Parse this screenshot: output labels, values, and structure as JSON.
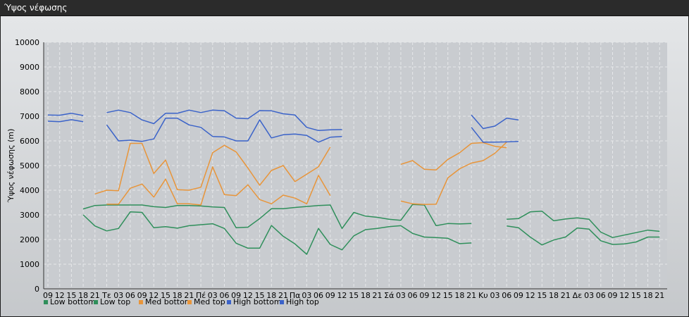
{
  "window": {
    "title": "Ύψος νέφωσης"
  },
  "chart_data": {
    "type": "line",
    "title": "",
    "ylabel": "Ύψος νέφωσης (m)",
    "xlabel": "",
    "ylim": [
      0,
      10000
    ],
    "yticks": [
      0,
      1000,
      2000,
      3000,
      4000,
      5000,
      6000,
      7000,
      8000,
      9000,
      10000
    ],
    "grid": true,
    "legend": "bottom-left",
    "x_tick_labels": [
      "09",
      "12",
      "15",
      "18",
      "21",
      "Τε",
      "03",
      "06",
      "09",
      "12",
      "15",
      "18",
      "21",
      "Πέ",
      "03",
      "06",
      "09",
      "12",
      "15",
      "18",
      "21",
      "Πα",
      "03",
      "06",
      "09",
      "12",
      "15",
      "18",
      "21",
      "Σά",
      "03",
      "06",
      "09",
      "12",
      "15",
      "18",
      "21",
      "Κυ",
      "03",
      "06",
      "09",
      "12",
      "15",
      "18",
      "21",
      "Δε",
      "03",
      "06",
      "09",
      "12",
      "15",
      "18",
      "21"
    ],
    "series": [
      {
        "name": "Low bottom",
        "color": "#2f8f5b",
        "values": [
          null,
          null,
          null,
          3000,
          2550,
          2350,
          2450,
          3120,
          3100,
          2480,
          2520,
          2460,
          2560,
          2600,
          2640,
          2450,
          1850,
          1650,
          1650,
          2570,
          2130,
          1820,
          1400,
          2450,
          1800,
          1580,
          2150,
          2400,
          2450,
          2520,
          2560,
          2250,
          2100,
          2080,
          2050,
          1830,
          1860,
          null,
          null,
          2550,
          2480,
          2100,
          1780,
          1980,
          2100,
          2470,
          2420,
          1950,
          1800,
          1820,
          1900,
          2100,
          2100
        ]
      },
      {
        "name": "Low top",
        "color": "#2f8f5b",
        "values": [
          null,
          null,
          null,
          3240,
          3380,
          3400,
          3400,
          3400,
          3400,
          3330,
          3300,
          3380,
          3380,
          3360,
          3320,
          3300,
          2480,
          2500,
          2850,
          3250,
          3250,
          3300,
          3340,
          3380,
          3400,
          2450,
          3100,
          2950,
          2900,
          2820,
          2780,
          3420,
          3400,
          2560,
          2650,
          2630,
          2650,
          null,
          null,
          2820,
          2850,
          3120,
          3150,
          2760,
          2830,
          2880,
          2820,
          2300,
          2080,
          2180,
          2280,
          2380,
          2330
        ]
      },
      {
        "name": "Med bottom",
        "color": "#e8953a",
        "values": [
          null,
          null,
          null,
          null,
          null,
          3430,
          3430,
          4080,
          4250,
          3720,
          4450,
          3450,
          3450,
          3400,
          4950,
          3820,
          3780,
          4220,
          3620,
          3450,
          3800,
          3680,
          3450,
          4600,
          3780,
          null,
          null,
          null,
          null,
          null,
          3560,
          3450,
          3420,
          3430,
          4500,
          4870,
          5100,
          5200,
          5500,
          5950,
          null,
          null,
          null,
          null,
          null,
          null,
          null,
          null,
          null,
          null,
          null,
          null,
          null
        ]
      },
      {
        "name": "Med top",
        "color": "#e8953a",
        "values": [
          null,
          null,
          null,
          null,
          3850,
          4000,
          3980,
          5900,
          5900,
          4680,
          5220,
          4020,
          4000,
          4120,
          5520,
          5820,
          5550,
          4900,
          4200,
          4800,
          5000,
          4350,
          4650,
          4950,
          5750,
          null,
          null,
          null,
          null,
          null,
          5050,
          5200,
          4850,
          4820,
          5250,
          5520,
          5900,
          5930,
          5780,
          5720,
          null,
          null,
          null,
          null,
          null,
          null,
          null,
          null,
          null,
          null,
          null,
          null,
          null
        ]
      },
      {
        "name": "High bottom",
        "color": "#3b63c9",
        "values": [
          6800,
          6780,
          6860,
          6780,
          null,
          6650,
          6000,
          6030,
          5980,
          6080,
          6920,
          6920,
          6650,
          6550,
          6180,
          6160,
          6000,
          6000,
          6850,
          6120,
          6250,
          6280,
          6220,
          5950,
          6150,
          6180,
          null,
          null,
          null,
          null,
          null,
          null,
          null,
          null,
          null,
          null,
          6550,
          5950,
          5950,
          5960,
          5980,
          null,
          null,
          null,
          null,
          null,
          null,
          null,
          null,
          null,
          null,
          null,
          null
        ]
      },
      {
        "name": "High top",
        "color": "#3b63c9",
        "values": [
          7050,
          7040,
          7120,
          7030,
          null,
          7150,
          7250,
          7150,
          6850,
          6700,
          7120,
          7120,
          7250,
          7150,
          7250,
          7220,
          6920,
          6900,
          7230,
          7220,
          7100,
          7050,
          6550,
          6420,
          6450,
          6460,
          null,
          null,
          null,
          null,
          null,
          null,
          null,
          null,
          null,
          null,
          7050,
          6500,
          6600,
          6920,
          6850,
          null,
          null,
          null,
          null,
          null,
          null,
          null,
          null,
          null,
          null,
          null,
          null
        ]
      }
    ]
  }
}
